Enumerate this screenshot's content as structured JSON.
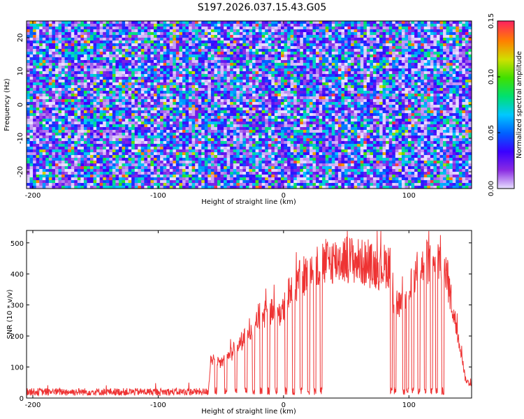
{
  "page": {
    "title": "S197.2026.037.15.43.G05"
  },
  "chart_data": [
    {
      "type": "heatmap",
      "name": "spectrogram",
      "xlabel": "Height of straight line (km)",
      "ylabel": "Frequency (Hz)",
      "xlim": [
        -205,
        150
      ],
      "ylim": [
        -25,
        25
      ],
      "xticks": [
        -200,
        -100,
        0,
        100
      ],
      "xtick_labels": [
        "-200",
        "-100",
        "0",
        "100"
      ],
      "yticks": [
        20,
        10,
        0,
        -10,
        -20
      ],
      "ytick_labels": [
        "20",
        "10",
        "0",
        "-10",
        "-20"
      ],
      "colorbar": {
        "label": "Normalized spectral amplitude",
        "range": [
          0,
          0.15
        ],
        "ticks": [
          0,
          0.05,
          0.1,
          0.15
        ],
        "tick_labels": [
          "0.00",
          "0.05",
          "0.10",
          "0.15"
        ],
        "colormap": [
          "#e8e0ff",
          "#8a2be2",
          "#3a00ff",
          "#0060ff",
          "#00c8ff",
          "#00e070",
          "#40e000",
          "#d0e000",
          "#ff8000",
          "#ff2060"
        ]
      },
      "description_values": {
        "grid_x_bins": 140,
        "grid_y_bins": 60,
        "typical_amplitude": 0.02,
        "peak_amplitude": 0.14
      }
    },
    {
      "type": "line",
      "name": "snr",
      "xlabel": "Height of straight line (km)",
      "ylabel": "SNR (10 * v/v)",
      "xlim": [
        -205,
        150
      ],
      "ylim": [
        0,
        540
      ],
      "xticks": [
        -200,
        -100,
        0,
        100
      ],
      "xtick_labels": [
        "-200",
        "-100",
        "0",
        "100"
      ],
      "yticks": [
        0,
        100,
        200,
        300,
        400,
        500
      ],
      "ytick_labels": [
        "0",
        "100",
        "200",
        "300",
        "400",
        "500"
      ],
      "color": "#ee3333",
      "profile": [
        [
          -205,
          20
        ],
        [
          -60,
          20
        ],
        [
          -58,
          130
        ],
        [
          -50,
          110
        ],
        [
          -40,
          150
        ],
        [
          -30,
          200
        ],
        [
          -20,
          260
        ],
        [
          -10,
          280
        ],
        [
          0,
          280
        ],
        [
          5,
          350
        ],
        [
          15,
          390
        ],
        [
          25,
          420
        ],
        [
          35,
          440
        ],
        [
          50,
          450
        ],
        [
          60,
          440
        ],
        [
          75,
          420
        ],
        [
          85,
          430
        ],
        [
          88,
          320
        ],
        [
          95,
          290
        ],
        [
          100,
          330
        ],
        [
          105,
          400
        ],
        [
          115,
          440
        ],
        [
          125,
          450
        ],
        [
          130,
          400
        ],
        [
          138,
          220
        ],
        [
          142,
          150
        ],
        [
          145,
          60
        ],
        [
          150,
          40
        ]
      ],
      "dropouts_x": [
        -54,
        -46,
        -38,
        -30,
        -24,
        -18,
        -12,
        -6,
        2,
        8,
        14,
        20,
        25,
        30,
        86,
        89,
        96,
        99,
        103,
        108,
        113,
        118,
        122,
        127
      ]
    }
  ]
}
